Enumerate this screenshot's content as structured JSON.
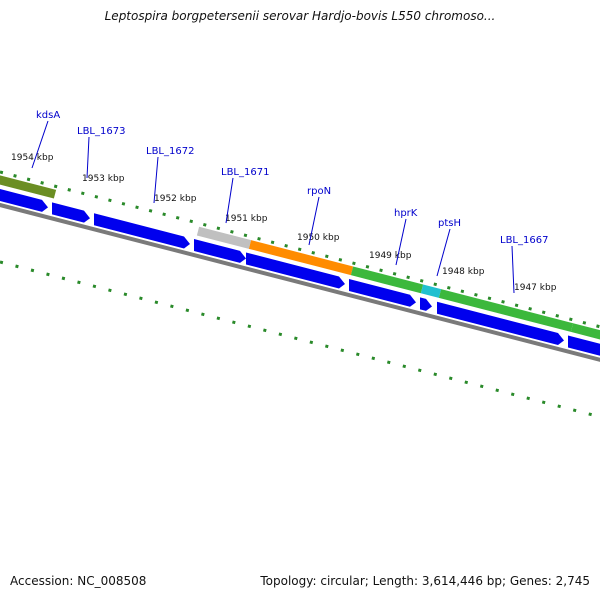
{
  "title": "Leptospira borgpetersenii serovar Hardjo-bovis L550 chromoso...",
  "footer": {
    "accession": "Accession: NC_008508",
    "summary": "Topology: circular; Length: 3,614,446 bp; Genes: 2,745"
  },
  "colors": {
    "forward_cds": "#0000ee",
    "backbone": "#7a7a7a",
    "tick": "#2a8a2a",
    "gene_label": "#0000cc",
    "kbp_label": "#111111"
  },
  "kbp_ticks": [
    "1954 kbp",
    "1953 kbp",
    "1952 kbp",
    "1951 kbp",
    "1950 kbp",
    "1949 kbp",
    "1948 kbp",
    "1947 kbp"
  ],
  "genes": [
    {
      "name": "kdsA",
      "color": "#6b8e23"
    },
    {
      "name": "LBL_1673",
      "color": "#0000ee"
    },
    {
      "name": "LBL_1672",
      "color": "#0000ee"
    },
    {
      "name": "LBL_1671",
      "color": "#c0c0c0"
    },
    {
      "name": "rpoN",
      "color": "#ff8c00"
    },
    {
      "name": "hprK",
      "color": "#3cb83c"
    },
    {
      "name": "ptsH",
      "color": "#20c0d0"
    },
    {
      "name": "LBL_1667",
      "color": "#3cb83c"
    }
  ]
}
